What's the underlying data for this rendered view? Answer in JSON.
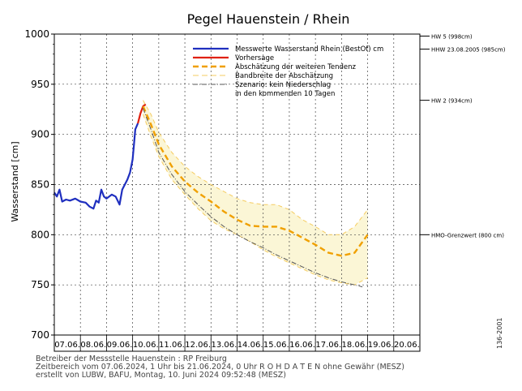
{
  "chart_data": {
    "type": "line",
    "title": "Pegel Hauenstein / Rhein",
    "ylabel": "Wasserstand [cm]",
    "xlabel": "",
    "ylim": [
      700,
      1000
    ],
    "yticks": [
      700,
      750,
      800,
      850,
      900,
      950,
      1000
    ],
    "x_categories": [
      "07.06.",
      "08.06.",
      "09.06.",
      "10.06.",
      "11.06.",
      "12.06.",
      "13.06.",
      "14.06.",
      "15.06.",
      "16.06.",
      "17.06.",
      "18.06.",
      "19.06.",
      "20.06."
    ],
    "grid": true,
    "legend_position": "top-right",
    "legend": [
      {
        "label": "Messwerte Wasserstand Rhein   (BestOf)   cm",
        "color": "#1f2fbf",
        "style": "solid"
      },
      {
        "label": "Vorhersage",
        "color": "#e02010",
        "style": "solid"
      },
      {
        "label": "Abschätzung der weiteren Tendenz",
        "color": "#f0a000",
        "style": "dashed"
      },
      {
        "label": "Bandbreite der Abschätzung",
        "color": "#f5cc60",
        "style": "dashed"
      },
      {
        "label": "Szenario: kein Niederschlag",
        "color": "#555555",
        "style": "dashdot"
      },
      {
        "label": "in den kommenden 10 Tagen",
        "color": "",
        "style": "none"
      }
    ],
    "reference_lines": [
      {
        "label": "HW 5 (998cm)",
        "value": 998
      },
      {
        "label": "HHW 23.08.2005 (985cm)",
        "value": 985
      },
      {
        "label": "HW 2 (934cm)",
        "value": 934
      },
      {
        "label": "HMO-Grenzwert (800 cm)",
        "value": 800
      }
    ],
    "series": [
      {
        "name": "Messwerte Wasserstand Rhein",
        "color": "#1f2fbf",
        "points": [
          [
            0.0,
            842
          ],
          [
            0.1,
            838
          ],
          [
            0.2,
            845
          ],
          [
            0.3,
            833
          ],
          [
            0.45,
            835
          ],
          [
            0.6,
            834
          ],
          [
            0.8,
            836
          ],
          [
            1.0,
            833
          ],
          [
            1.2,
            832
          ],
          [
            1.35,
            828
          ],
          [
            1.5,
            826
          ],
          [
            1.6,
            834
          ],
          [
            1.7,
            832
          ],
          [
            1.8,
            845
          ],
          [
            1.9,
            838
          ],
          [
            2.0,
            836
          ],
          [
            2.2,
            840
          ],
          [
            2.35,
            838
          ],
          [
            2.5,
            830
          ],
          [
            2.6,
            845
          ],
          [
            2.7,
            850
          ],
          [
            2.8,
            855
          ],
          [
            2.9,
            862
          ],
          [
            3.0,
            875
          ],
          [
            3.05,
            890
          ],
          [
            3.1,
            905
          ],
          [
            3.2,
            911
          ]
        ]
      },
      {
        "name": "Vorhersage",
        "color": "#e02010",
        "points": [
          [
            3.2,
            911
          ],
          [
            3.3,
            921
          ],
          [
            3.4,
            928
          ],
          [
            3.5,
            930
          ]
        ]
      },
      {
        "name": "Abschätzung der weiteren Tendenz",
        "color": "#f0a000",
        "points": [
          [
            3.4,
            928
          ],
          [
            3.7,
            910
          ],
          [
            4.0,
            890
          ],
          [
            4.5,
            868
          ],
          [
            5.0,
            853
          ],
          [
            5.5,
            842
          ],
          [
            6.0,
            833
          ],
          [
            6.5,
            823
          ],
          [
            7.0,
            815
          ],
          [
            7.5,
            809
          ],
          [
            8.0,
            808
          ],
          [
            8.5,
            808
          ],
          [
            9.0,
            804
          ],
          [
            9.5,
            797
          ],
          [
            10.0,
            790
          ],
          [
            10.5,
            782
          ],
          [
            11.0,
            779
          ],
          [
            11.5,
            782
          ],
          [
            12.0,
            800
          ]
        ]
      },
      {
        "name": "Bandbreite oben",
        "color": "#f5cc60",
        "points": [
          [
            3.4,
            934
          ],
          [
            3.7,
            920
          ],
          [
            4.0,
            902
          ],
          [
            4.5,
            882
          ],
          [
            5.0,
            868
          ],
          [
            5.5,
            858
          ],
          [
            6.0,
            850
          ],
          [
            6.5,
            843
          ],
          [
            7.0,
            836
          ],
          [
            7.5,
            832
          ],
          [
            8.0,
            830
          ],
          [
            8.5,
            830
          ],
          [
            9.0,
            825
          ],
          [
            9.5,
            815
          ],
          [
            10.0,
            808
          ],
          [
            10.5,
            800
          ],
          [
            11.0,
            800
          ],
          [
            11.5,
            808
          ],
          [
            12.0,
            825
          ]
        ]
      },
      {
        "name": "Bandbreite unten",
        "color": "#f5cc60",
        "points": [
          [
            3.4,
            920
          ],
          [
            3.7,
            898
          ],
          [
            4.0,
            878
          ],
          [
            4.5,
            855
          ],
          [
            5.0,
            840
          ],
          [
            5.5,
            826
          ],
          [
            6.0,
            814
          ],
          [
            6.5,
            806
          ],
          [
            7.0,
            800
          ],
          [
            7.5,
            793
          ],
          [
            8.0,
            785
          ],
          [
            8.5,
            778
          ],
          [
            9.0,
            772
          ],
          [
            9.5,
            766
          ],
          [
            10.0,
            760
          ],
          [
            10.5,
            755
          ],
          [
            11.0,
            752
          ],
          [
            11.5,
            750
          ],
          [
            12.0,
            757
          ]
        ]
      },
      {
        "name": "Szenario: kein Niederschlag",
        "color": "#555555",
        "points": [
          [
            3.4,
            926
          ],
          [
            3.7,
            905
          ],
          [
            4.0,
            882
          ],
          [
            4.5,
            860
          ],
          [
            5.0,
            843
          ],
          [
            5.5,
            830
          ],
          [
            6.0,
            818
          ],
          [
            6.5,
            808
          ],
          [
            7.0,
            800
          ],
          [
            7.5,
            793
          ],
          [
            8.0,
            787
          ],
          [
            8.5,
            780
          ],
          [
            9.0,
            774
          ],
          [
            9.5,
            768
          ],
          [
            10.0,
            762
          ],
          [
            10.5,
            757
          ],
          [
            11.0,
            753
          ],
          [
            11.5,
            750
          ],
          [
            11.8,
            748
          ]
        ]
      }
    ]
  },
  "footer": {
    "line1": "Betreiber der Messstelle Hauenstein : RP Freiburg",
    "line2": "Zeitbereich vom 07.06.2024, 1 Uhr bis 21.06.2024, 0 Uhr    R O H D A T E N ohne Gewähr (MESZ)",
    "line3": "erstellt von LUBW, BAFU, Montag, 10. Juni 2024 09:52:48  (MESZ)",
    "code": "136-2001"
  }
}
